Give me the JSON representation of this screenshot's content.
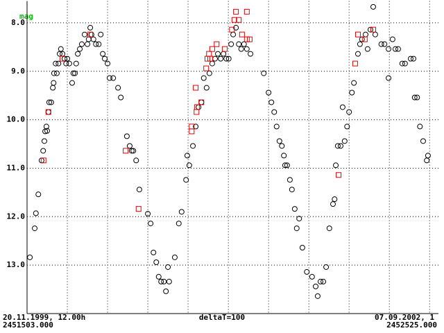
{
  "chart_data": {
    "type": "scatter",
    "y_label": "mag",
    "xlim": [
      2451503,
      2452525
    ],
    "ylim": [
      14.0,
      7.55
    ],
    "y_inverted": true,
    "grid": true,
    "yticks": [
      {
        "value": 8,
        "label": "8.0"
      },
      {
        "value": 9,
        "label": "9.0"
      },
      {
        "value": 10,
        "label": "10.0"
      },
      {
        "value": 11,
        "label": "11.0"
      },
      {
        "value": 12,
        "label": "12.0"
      },
      {
        "value": 13,
        "label": "13.0"
      }
    ],
    "xgrid": [
      2451603,
      2451703,
      2451803,
      2451903,
      2452003,
      2452103,
      2452203,
      2452303,
      2452403,
      2452503
    ],
    "x_start_date": "20.11.1999, 12.00h",
    "x_start_jd": "2451503.000",
    "x_end_date": "07.09.2002, 1",
    "x_end_jd": "2452525.000",
    "x_step": "deltaT=100",
    "series": [
      {
        "marker": "circle",
        "color": "#000000",
        "x": [
          2451510,
          2451522,
          2451525,
          2451531,
          2451539,
          2451543,
          2451546,
          2451548,
          2451551,
          2451553,
          2451556,
          2451558,
          2451563,
          2451567,
          2451569,
          2451570,
          2451574,
          2451577,
          2451581,
          2451584,
          2451587,
          2451591,
          2451596,
          2451600,
          2451603,
          2451608,
          2451615,
          2451618,
          2451622,
          2451625,
          2451629,
          2451634,
          2451639,
          2451646,
          2451653,
          2451656,
          2451660,
          2451663,
          2451668,
          2451674,
          2451681,
          2451686,
          2451691,
          2451696,
          2451703,
          2451708,
          2451717,
          2451729,
          2451736,
          2451751,
          2451758,
          2451763,
          2451767,
          2451774,
          2451782,
          2451803,
          2451810,
          2451817,
          2451824,
          2451830,
          2451836,
          2451843,
          2451848,
          2451853,
          2451856,
          2451870,
          2451880,
          2451887,
          2451898,
          2451901,
          2451906,
          2451915,
          2451922,
          2451929,
          2451936,
          2451942,
          2451949,
          2451956,
          2451963,
          2451970,
          2451977,
          2451984,
          2451991,
          2451998,
          2452004,
          2452010,
          2452015,
          2452022,
          2452029,
          2452035,
          2452042,
          2452049,
          2452058,
          2452091,
          2452103,
          2452110,
          2452117,
          2452123,
          2452130,
          2452136,
          2452141,
          2452144,
          2452149,
          2452156,
          2452161,
          2452168,
          2452173,
          2452179,
          2452187,
          2452198,
          2452211,
          2452220,
          2452225,
          2452232,
          2452239,
          2452246,
          2452254,
          2452263,
          2452267,
          2452270,
          2452275,
          2452282,
          2452287,
          2452292,
          2452298,
          2452303,
          2452310,
          2452315,
          2452325,
          2452330,
          2452335,
          2452344,
          2452349,
          2452356,
          2452363,
          2452368,
          2452383,
          2452391,
          2452401,
          2452401,
          2452411,
          2452418,
          2452425,
          2452435,
          2452442,
          2452456,
          2452463,
          2452466,
          2452472,
          2452479,
          2452487,
          2452496,
          2452499
        ],
        "values": [
          12.84,
          12.24,
          11.93,
          11.54,
          10.84,
          10.64,
          10.44,
          10.24,
          10.14,
          10.23,
          9.84,
          9.64,
          9.64,
          9.34,
          9.24,
          9.04,
          8.84,
          9.04,
          8.84,
          8.64,
          8.54,
          8.64,
          8.74,
          8.84,
          8.74,
          8.84,
          9.24,
          9.04,
          9.04,
          8.84,
          8.64,
          8.54,
          8.44,
          8.24,
          8.44,
          8.34,
          8.1,
          8.24,
          8.34,
          8.44,
          8.44,
          8.24,
          8.64,
          8.74,
          8.84,
          9.14,
          9.14,
          9.34,
          9.54,
          10.34,
          10.54,
          10.64,
          10.64,
          10.84,
          11.44,
          11.94,
          12.14,
          12.74,
          12.94,
          13.24,
          13.34,
          13.34,
          13.54,
          13.04,
          13.34,
          12.84,
          12.14,
          11.9,
          11.24,
          10.74,
          10.94,
          10.54,
          10.14,
          9.74,
          9.64,
          9.14,
          9.34,
          9.04,
          8.84,
          8.74,
          8.64,
          8.74,
          8.64,
          8.74,
          8.74,
          8.44,
          8.24,
          8.1,
          8.44,
          8.54,
          8.44,
          8.54,
          8.64,
          9.04,
          9.44,
          9.64,
          9.84,
          10.14,
          10.44,
          10.54,
          10.74,
          10.94,
          10.94,
          11.24,
          11.44,
          11.84,
          12.24,
          12.04,
          12.64,
          13.14,
          13.24,
          13.44,
          13.64,
          13.34,
          13.34,
          13.04,
          12.24,
          11.74,
          11.64,
          10.94,
          10.54,
          10.54,
          9.74,
          10.44,
          10.14,
          9.84,
          9.44,
          9.24,
          8.64,
          8.44,
          8.34,
          8.24,
          8.54,
          8.14,
          7.67,
          8.24,
          8.44,
          8.44,
          8.54,
          9.14,
          8.34,
          8.54,
          8.54,
          8.84,
          8.84,
          8.74,
          8.74,
          9.54,
          9.54,
          10.14,
          10.44,
          10.84,
          10.74
        ]
      },
      {
        "marker": "square",
        "color": "#e00000",
        "x": [
          2451544,
          2451556,
          2451591,
          2451660,
          2451748,
          2451780,
          2451912,
          2451912,
          2451922,
          2451924,
          2451925,
          2451936,
          2451948,
          2451951,
          2451955,
          2451958,
          2451963,
          2451974,
          2451994,
          2452012,
          2452018,
          2452022,
          2452029,
          2452037,
          2452049,
          2452049,
          2452056,
          2452277,
          2452318,
          2452325,
          2452342,
          2452363
        ],
        "values": [
          10.84,
          9.84,
          8.74,
          8.24,
          10.64,
          11.84,
          10.14,
          10.24,
          9.34,
          9.84,
          9.74,
          9.64,
          8.94,
          8.74,
          8.64,
          8.74,
          8.54,
          8.44,
          8.54,
          8.14,
          7.94,
          7.77,
          7.94,
          8.24,
          7.77,
          8.34,
          8.34,
          11.14,
          8.84,
          8.24,
          8.34,
          8.14
        ]
      }
    ]
  }
}
